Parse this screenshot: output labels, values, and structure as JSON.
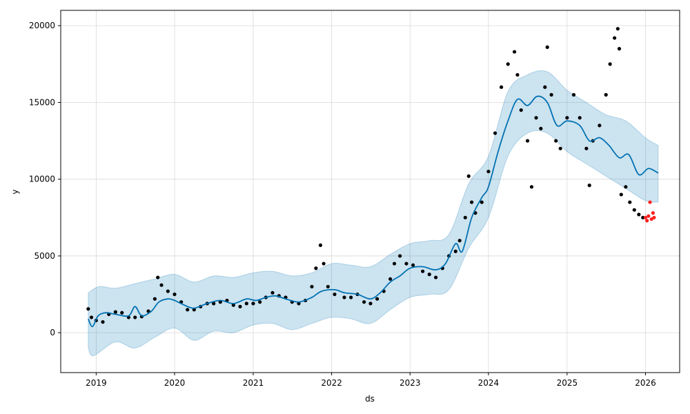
{
  "chart_data": {
    "type": "line",
    "xlabel": "ds",
    "ylabel": "y",
    "x_ticks": [
      "2019",
      "2020",
      "2021",
      "2022",
      "2023",
      "2024",
      "2025",
      "2026"
    ],
    "y_ticks": [
      0,
      5000,
      10000,
      15000,
      20000
    ],
    "xlim": [
      "2018-07-20",
      "2026-06-09"
    ],
    "ylim": [
      -2600,
      21000
    ],
    "grid": true,
    "colors": {
      "forecast_line": "#0072B2",
      "uncertainty_band": "#0072B2",
      "observed_points": "#000000",
      "recent_points": "#ff2020",
      "grid": "#d9d9d9"
    },
    "series": [
      {
        "role": "forecast",
        "points": [
          [
            "2018-11-25",
            900
          ],
          [
            "2018-12-15",
            400
          ],
          [
            "2019-01-10",
            1100
          ],
          [
            "2019-02-15",
            1300
          ],
          [
            "2019-04-01",
            1200
          ],
          [
            "2019-06-01",
            1100
          ],
          [
            "2019-07-01",
            1700
          ],
          [
            "2019-08-01",
            1100
          ],
          [
            "2019-09-15",
            1400
          ],
          [
            "2019-10-20",
            2000
          ],
          [
            "2019-12-01",
            2200
          ],
          [
            "2020-01-01",
            2100
          ],
          [
            "2020-02-15",
            1800
          ],
          [
            "2020-04-01",
            1600
          ],
          [
            "2020-06-01",
            1900
          ],
          [
            "2020-08-01",
            2100
          ],
          [
            "2020-10-01",
            1900
          ],
          [
            "2020-12-01",
            2200
          ],
          [
            "2021-01-15",
            2100
          ],
          [
            "2021-03-01",
            2300
          ],
          [
            "2021-04-15",
            2400
          ],
          [
            "2021-06-01",
            2200
          ],
          [
            "2021-08-01",
            2000
          ],
          [
            "2021-10-01",
            2300
          ],
          [
            "2021-11-15",
            2700
          ],
          [
            "2022-01-15",
            2800
          ],
          [
            "2022-03-01",
            2600
          ],
          [
            "2022-05-01",
            2500
          ],
          [
            "2022-07-01",
            2200
          ],
          [
            "2022-08-15",
            2600
          ],
          [
            "2022-10-01",
            3300
          ],
          [
            "2022-11-15",
            3700
          ],
          [
            "2023-01-01",
            4200
          ],
          [
            "2023-03-01",
            4300
          ],
          [
            "2023-05-01",
            4100
          ],
          [
            "2023-06-15",
            4500
          ],
          [
            "2023-08-01",
            5800
          ],
          [
            "2023-09-01",
            5300
          ],
          [
            "2023-10-15",
            7500
          ],
          [
            "2023-12-01",
            8800
          ],
          [
            "2024-01-01",
            9500
          ],
          [
            "2024-02-15",
            11800
          ],
          [
            "2024-04-01",
            13800
          ],
          [
            "2024-05-15",
            15200
          ],
          [
            "2024-07-01",
            14800
          ],
          [
            "2024-08-15",
            15400
          ],
          [
            "2024-10-01",
            15000
          ],
          [
            "2024-11-15",
            13500
          ],
          [
            "2025-01-01",
            13800
          ],
          [
            "2025-03-01",
            13500
          ],
          [
            "2025-04-15",
            12500
          ],
          [
            "2025-06-01",
            12700
          ],
          [
            "2025-07-15",
            12200
          ],
          [
            "2025-09-01",
            11400
          ],
          [
            "2025-10-15",
            11600
          ],
          [
            "2025-12-01",
            10300
          ],
          [
            "2026-01-15",
            10700
          ],
          [
            "2026-03-01",
            10400
          ]
        ]
      },
      {
        "role": "uncertainty_upper",
        "points": [
          [
            "2018-11-25",
            2600
          ],
          [
            "2019-01-15",
            3000
          ],
          [
            "2019-04-01",
            2900
          ],
          [
            "2019-07-01",
            3200
          ],
          [
            "2019-10-01",
            3500
          ],
          [
            "2020-01-01",
            3800
          ],
          [
            "2020-04-01",
            3300
          ],
          [
            "2020-07-01",
            3700
          ],
          [
            "2020-10-01",
            3600
          ],
          [
            "2021-01-01",
            3900
          ],
          [
            "2021-04-01",
            4000
          ],
          [
            "2021-07-01",
            3700
          ],
          [
            "2021-10-01",
            3900
          ],
          [
            "2022-01-01",
            4500
          ],
          [
            "2022-04-01",
            4400
          ],
          [
            "2022-07-01",
            4300
          ],
          [
            "2022-10-01",
            5100
          ],
          [
            "2023-01-01",
            5800
          ],
          [
            "2023-04-01",
            6000
          ],
          [
            "2023-07-01",
            6400
          ],
          [
            "2023-10-01",
            9700
          ],
          [
            "2024-01-01",
            11500
          ],
          [
            "2024-04-01",
            15700
          ],
          [
            "2024-07-01",
            16800
          ],
          [
            "2024-10-01",
            17000
          ],
          [
            "2025-01-01",
            15800
          ],
          [
            "2025-04-01",
            15000
          ],
          [
            "2025-07-01",
            14200
          ],
          [
            "2025-10-01",
            13800
          ],
          [
            "2026-01-01",
            12700
          ],
          [
            "2026-03-01",
            12200
          ]
        ]
      },
      {
        "role": "uncertainty_lower",
        "points": [
          [
            "2018-11-25",
            -1000
          ],
          [
            "2018-12-20",
            -1500
          ],
          [
            "2019-04-01",
            -600
          ],
          [
            "2019-07-01",
            -1000
          ],
          [
            "2019-10-01",
            -300
          ],
          [
            "2020-01-01",
            300
          ],
          [
            "2020-04-01",
            -500
          ],
          [
            "2020-07-01",
            100
          ],
          [
            "2020-10-01",
            0
          ],
          [
            "2021-01-01",
            500
          ],
          [
            "2021-04-01",
            600
          ],
          [
            "2021-07-01",
            200
          ],
          [
            "2021-10-01",
            600
          ],
          [
            "2022-01-01",
            1000
          ],
          [
            "2022-04-01",
            900
          ],
          [
            "2022-07-01",
            600
          ],
          [
            "2022-10-01",
            1500
          ],
          [
            "2023-01-01",
            2300
          ],
          [
            "2023-04-01",
            2500
          ],
          [
            "2023-07-01",
            2800
          ],
          [
            "2023-10-01",
            5500
          ],
          [
            "2024-01-01",
            7500
          ],
          [
            "2024-04-01",
            11500
          ],
          [
            "2024-07-01",
            13000
          ],
          [
            "2024-10-01",
            13000
          ],
          [
            "2025-01-01",
            11800
          ],
          [
            "2025-04-01",
            11000
          ],
          [
            "2025-07-01",
            10200
          ],
          [
            "2025-10-01",
            9400
          ],
          [
            "2026-01-01",
            8600
          ],
          [
            "2026-03-01",
            8500
          ]
        ]
      },
      {
        "role": "observed",
        "points": [
          [
            "2018-11-25",
            1550
          ],
          [
            "2018-12-10",
            1000
          ],
          [
            "2019-01-01",
            800
          ],
          [
            "2019-02-01",
            700
          ],
          [
            "2019-03-01",
            1200
          ],
          [
            "2019-04-01",
            1350
          ],
          [
            "2019-05-01",
            1300
          ],
          [
            "2019-06-01",
            1000
          ],
          [
            "2019-07-01",
            1000
          ],
          [
            "2019-08-01",
            1050
          ],
          [
            "2019-09-01",
            1400
          ],
          [
            "2019-10-01",
            2200
          ],
          [
            "2019-10-15",
            3600
          ],
          [
            "2019-11-01",
            3100
          ],
          [
            "2019-12-01",
            2700
          ],
          [
            "2020-01-01",
            2500
          ],
          [
            "2020-02-01",
            2000
          ],
          [
            "2020-03-01",
            1500
          ],
          [
            "2020-04-01",
            1500
          ],
          [
            "2020-05-01",
            1700
          ],
          [
            "2020-06-01",
            1900
          ],
          [
            "2020-07-01",
            1900
          ],
          [
            "2020-08-01",
            2000
          ],
          [
            "2020-09-01",
            2100
          ],
          [
            "2020-10-01",
            1800
          ],
          [
            "2020-11-01",
            1700
          ],
          [
            "2020-12-01",
            1900
          ],
          [
            "2021-01-01",
            1900
          ],
          [
            "2021-02-01",
            2000
          ],
          [
            "2021-03-01",
            2300
          ],
          [
            "2021-04-01",
            2600
          ],
          [
            "2021-05-01",
            2400
          ],
          [
            "2021-06-01",
            2300
          ],
          [
            "2021-07-01",
            2000
          ],
          [
            "2021-08-01",
            1900
          ],
          [
            "2021-09-01",
            2100
          ],
          [
            "2021-10-01",
            3000
          ],
          [
            "2021-10-20",
            4200
          ],
          [
            "2021-11-10",
            5700
          ],
          [
            "2021-11-25",
            4500
          ],
          [
            "2021-12-15",
            3000
          ],
          [
            "2022-01-15",
            2500
          ],
          [
            "2022-03-01",
            2300
          ],
          [
            "2022-04-01",
            2300
          ],
          [
            "2022-05-01",
            2500
          ],
          [
            "2022-06-01",
            2000
          ],
          [
            "2022-07-01",
            1900
          ],
          [
            "2022-08-01",
            2200
          ],
          [
            "2022-09-01",
            2700
          ],
          [
            "2022-10-01",
            3500
          ],
          [
            "2022-10-20",
            4500
          ],
          [
            "2022-11-15",
            5000
          ],
          [
            "2022-12-15",
            4500
          ],
          [
            "2023-01-15",
            4400
          ],
          [
            "2023-03-01",
            4000
          ],
          [
            "2023-04-01",
            3800
          ],
          [
            "2023-05-01",
            3600
          ],
          [
            "2023-06-01",
            4200
          ],
          [
            "2023-07-01",
            5000
          ],
          [
            "2023-08-01",
            5300
          ],
          [
            "2023-08-20",
            6000
          ],
          [
            "2023-09-15",
            7500
          ],
          [
            "2023-10-01",
            10200
          ],
          [
            "2023-10-15",
            8500
          ],
          [
            "2023-11-01",
            7800
          ],
          [
            "2023-12-01",
            8500
          ],
          [
            "2024-01-01",
            10500
          ],
          [
            "2024-02-01",
            13000
          ],
          [
            "2024-03-01",
            16000
          ],
          [
            "2024-04-01",
            17500
          ],
          [
            "2024-05-01",
            18300
          ],
          [
            "2024-05-15",
            16800
          ],
          [
            "2024-06-01",
            14500
          ],
          [
            "2024-07-01",
            12500
          ],
          [
            "2024-07-20",
            9500
          ],
          [
            "2024-08-10",
            14000
          ],
          [
            "2024-09-01",
            13300
          ],
          [
            "2024-09-20",
            16000
          ],
          [
            "2024-10-01",
            18600
          ],
          [
            "2024-10-20",
            15500
          ],
          [
            "2024-11-10",
            12500
          ],
          [
            "2024-12-01",
            12000
          ],
          [
            "2025-01-01",
            14000
          ],
          [
            "2025-02-01",
            15500
          ],
          [
            "2025-03-01",
            14000
          ],
          [
            "2025-04-01",
            12000
          ],
          [
            "2025-04-15",
            9600
          ],
          [
            "2025-05-01",
            12500
          ],
          [
            "2025-06-01",
            13500
          ],
          [
            "2025-07-01",
            15500
          ],
          [
            "2025-07-20",
            17500
          ],
          [
            "2025-08-10",
            19200
          ],
          [
            "2025-08-25",
            19800
          ],
          [
            "2025-09-01",
            18500
          ],
          [
            "2025-09-10",
            9000
          ],
          [
            "2025-10-01",
            9500
          ],
          [
            "2025-10-20",
            8500
          ],
          [
            "2025-11-10",
            8000
          ],
          [
            "2025-12-01",
            7700
          ],
          [
            "2025-12-20",
            7500
          ]
        ]
      },
      {
        "role": "recent",
        "points": [
          [
            "2026-01-01",
            7500
          ],
          [
            "2026-01-08",
            7300
          ],
          [
            "2026-01-15",
            7600
          ],
          [
            "2026-01-22",
            8500
          ],
          [
            "2026-01-29",
            7400
          ],
          [
            "2026-02-05",
            7800
          ],
          [
            "2026-02-10",
            7500
          ]
        ]
      }
    ]
  }
}
